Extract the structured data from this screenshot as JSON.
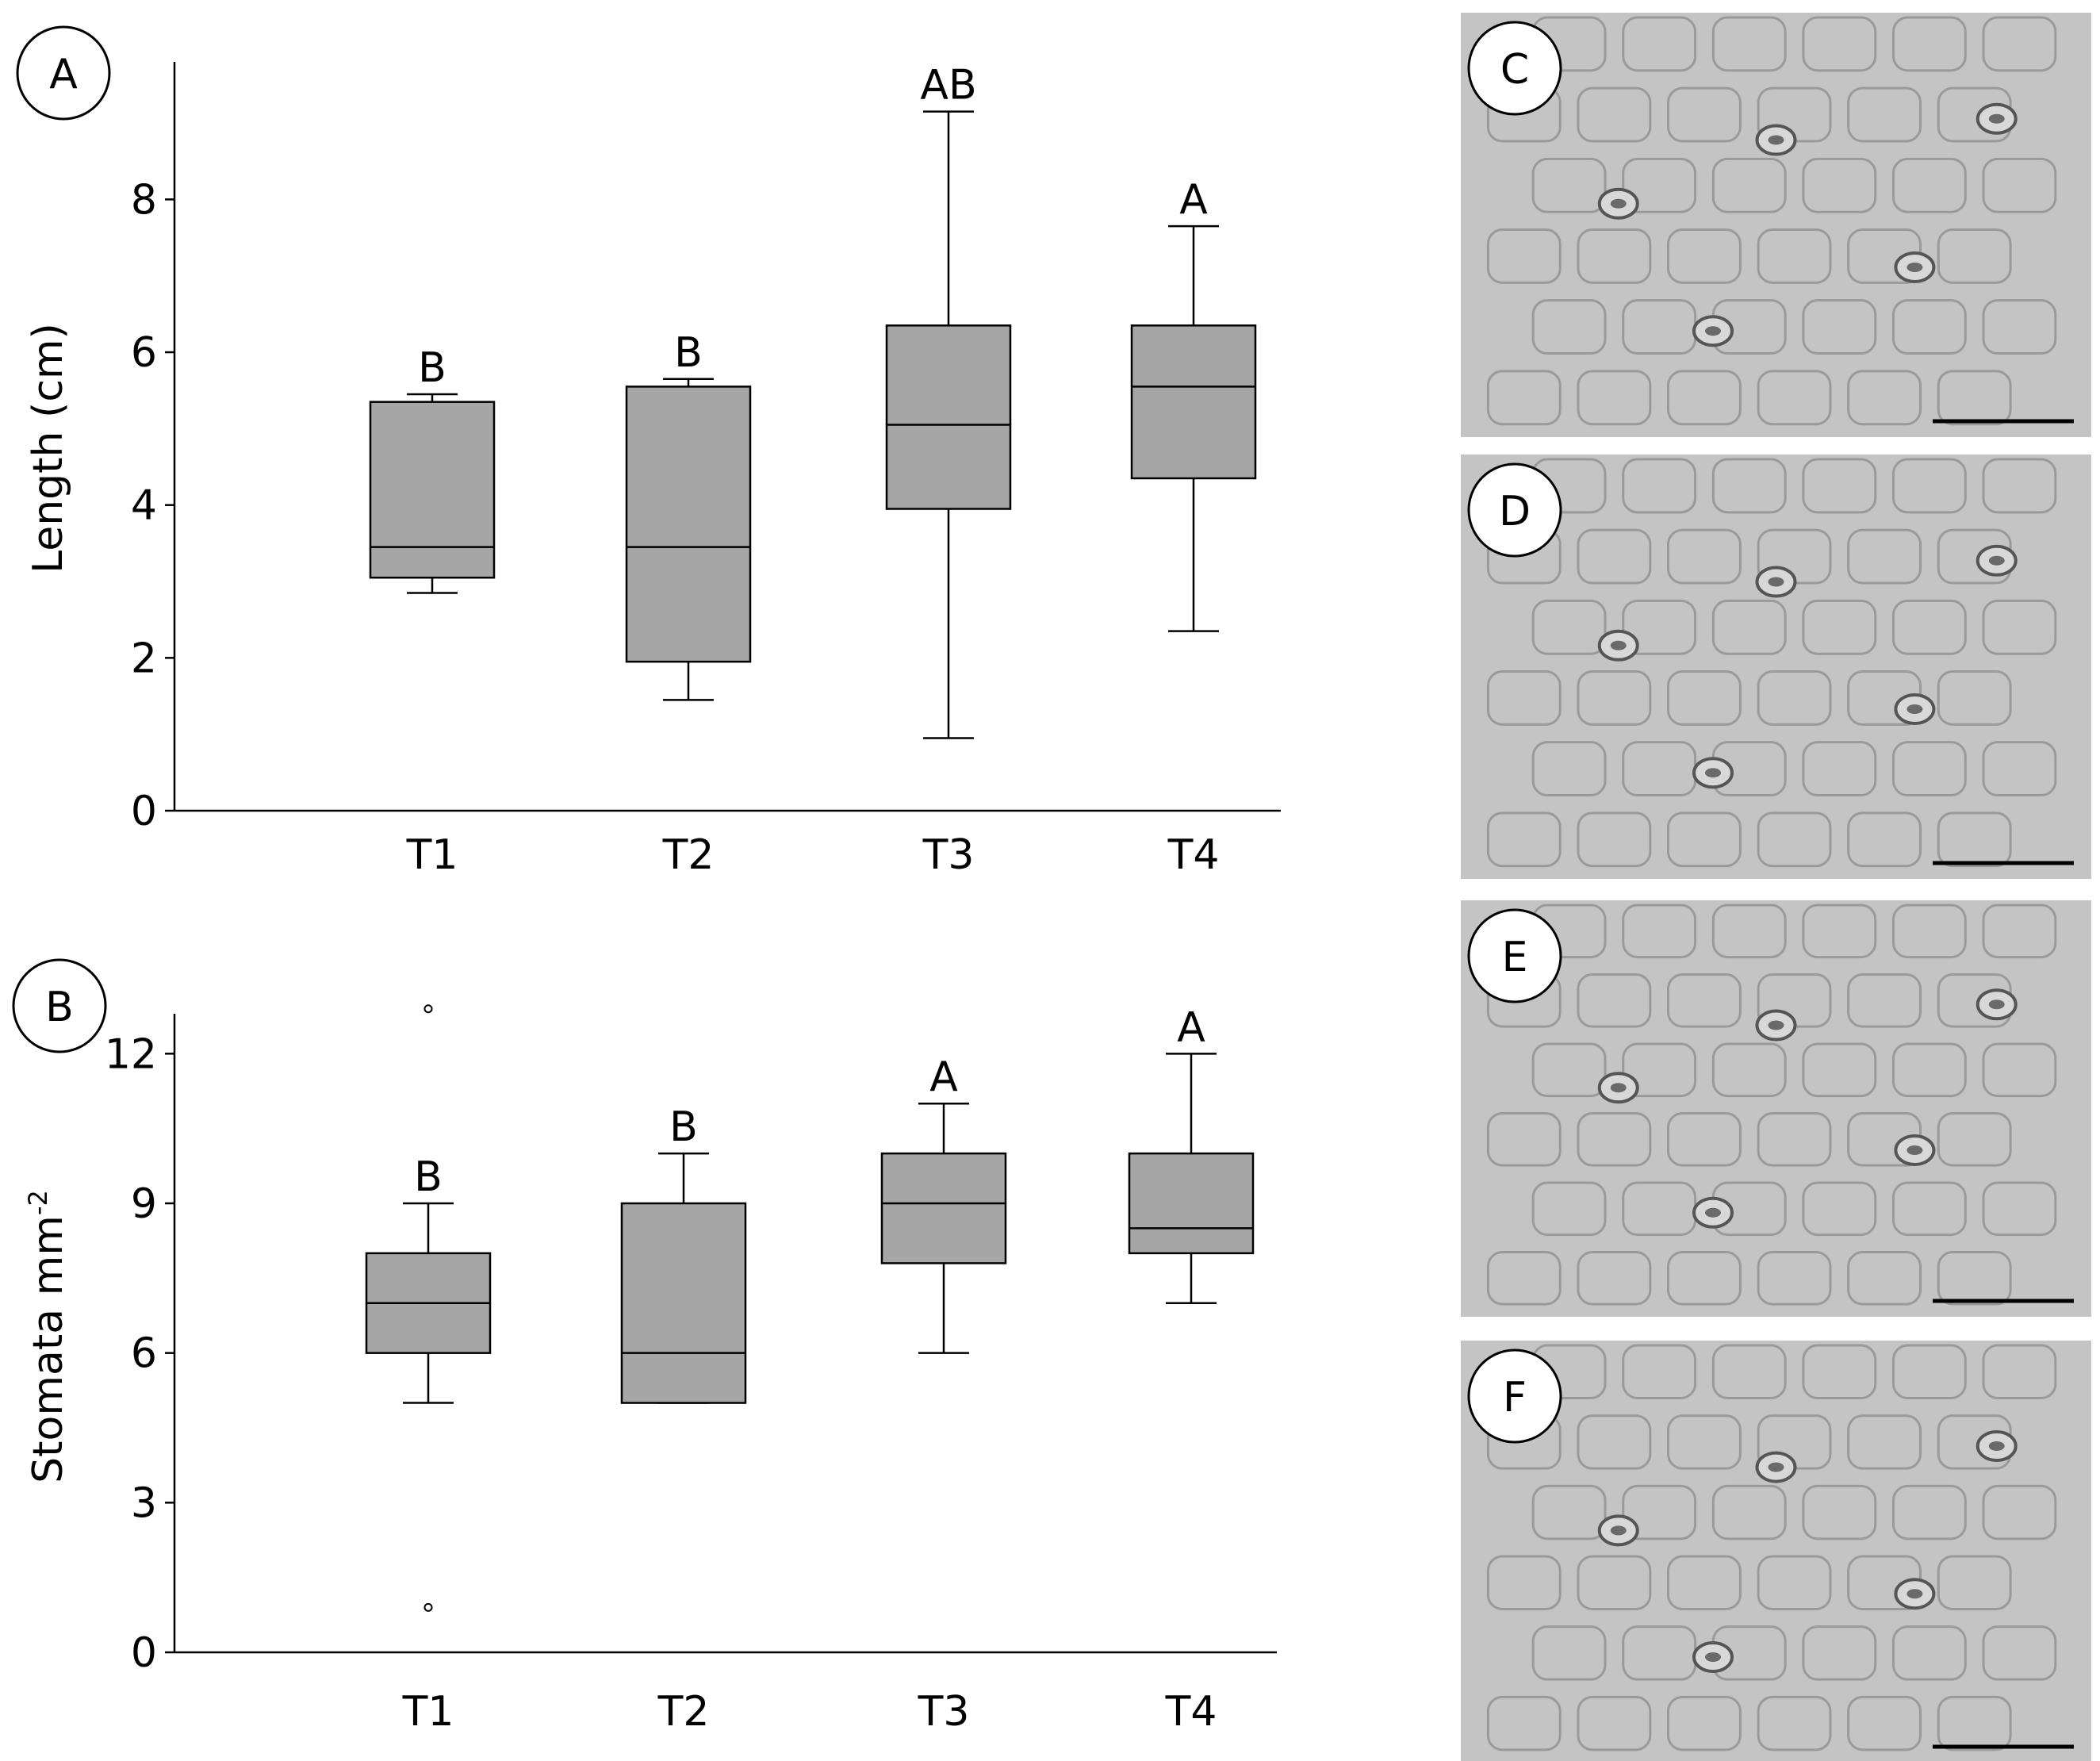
{
  "chart_data": [
    {
      "type": "boxplot",
      "panel_label": "A",
      "ylabel": "Length (cm)",
      "xlabel": "",
      "categories": [
        "T1",
        "T2",
        "T3",
        "T4"
      ],
      "ylim": [
        0,
        9.8
      ],
      "yticks": [
        0,
        2,
        4,
        6,
        8
      ],
      "boxes": [
        {
          "min": 2.85,
          "q1": 3.05,
          "median": 3.45,
          "q3": 5.35,
          "max": 5.45
        },
        {
          "min": 1.45,
          "q1": 1.95,
          "median": 3.45,
          "q3": 5.55,
          "max": 5.65
        },
        {
          "min": 0.95,
          "q1": 3.95,
          "median": 5.05,
          "q3": 6.35,
          "max": 9.15
        },
        {
          "min": 2.35,
          "q1": 4.35,
          "median": 5.55,
          "q3": 6.35,
          "max": 7.65
        }
      ],
      "outliers": [
        [],
        [],
        [],
        []
      ],
      "significance": [
        "B",
        "B",
        "AB",
        "A"
      ],
      "grid": false
    },
    {
      "type": "boxplot",
      "panel_label": "B",
      "ylabel": "Stomata mm",
      "ylabel_superscript": "-2",
      "xlabel": "",
      "categories": [
        "T1",
        "T2",
        "T3",
        "T4"
      ],
      "ylim": [
        0,
        12.8
      ],
      "yticks": [
        0,
        3,
        6,
        9,
        12
      ],
      "boxes": [
        {
          "min": 5.0,
          "q1": 6.0,
          "median": 7.0,
          "q3": 8.0,
          "max": 9.0
        },
        {
          "min": 5.0,
          "q1": 5.0,
          "median": 6.0,
          "q3": 9.0,
          "max": 10.0
        },
        {
          "min": 6.0,
          "q1": 7.8,
          "median": 9.0,
          "q3": 10.0,
          "max": 11.0
        },
        {
          "min": 7.0,
          "q1": 8.0,
          "median": 8.5,
          "q3": 10.0,
          "max": 12.0
        }
      ],
      "outliers": [
        [
          12.9,
          0.9
        ],
        [],
        [],
        []
      ],
      "significance": [
        "B",
        "B",
        "A",
        "A"
      ],
      "grid": false
    }
  ],
  "micrographs": [
    {
      "label": "C"
    },
    {
      "label": "D"
    },
    {
      "label": "E"
    },
    {
      "label": "F"
    }
  ],
  "colors": {
    "box_fill": "#a6a6a6",
    "line": "#000000",
    "micro_bg": "#c4c4c4"
  }
}
